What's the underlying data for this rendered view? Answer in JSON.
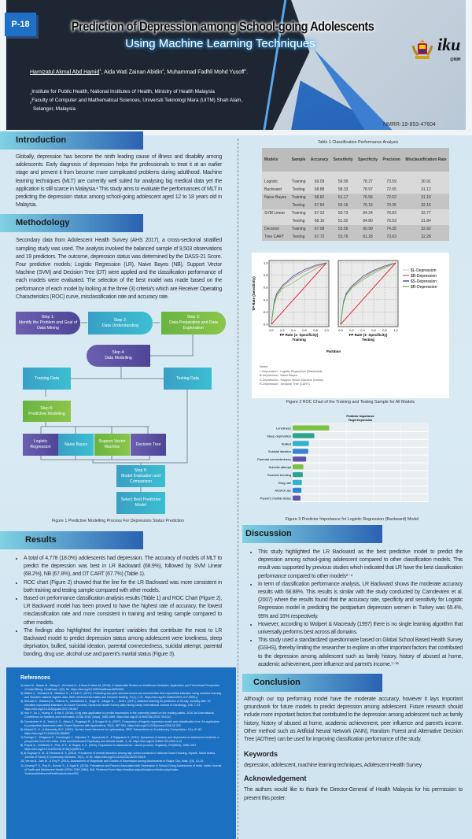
{
  "header": {
    "badge": "P-18",
    "title_line1": "Prediction of Depression among School-going Adolescents",
    "title_line2": "Using Machine Learning Techniques",
    "authors": [
      {
        "name": "Hamizatul Akmal Abd Hamid",
        "sup": "1"
      },
      {
        "name": "Aida Wati Zainan Abidin",
        "sup": "2"
      },
      {
        "name": "Muhammad Fadhli Mohd Yusoff",
        "sup": "1"
      }
    ],
    "affiliations": [
      "Institute for Public Health, National Institutes of Health, Ministry of Health Malaysia",
      "Faculty of Computer and Mathematical Sciences, Universiti Teknologi Mara (UiTM) Shah Alam,",
      "Selangor, Malaysia"
    ],
    "nmrr": "NMRR-19-853-47604",
    "logo_text": "iku",
    "logo_sub": "@NIH"
  },
  "introduction": {
    "heading": "Introduction",
    "text": "Globally, depression has become the ninth leading cause of illness and disability among adolescents. Early diagnosis of depression helps the professionals to treat it at an earlier stage and prevent it from become more complicated problems during adulthood. Machine learning techniques (MLT) are currently well suited for analysing big medical data yet the application is still scarce in Malaysia.¹ This study aims to evaluate the performances of MLT in predicting the depression status among school-going adolescent aged 12 to 18 years old in Malaysia."
  },
  "methodology": {
    "heading": "Methodology",
    "text": "Secondary data from Adolescent Health Survey (AHS 2017), a cross-sectional stratified sampling study was used. The analysis involved the balanced sample of 9,503 observations and 19 predictors. The outcome, depression status was determined by the DASS-21 Score. Four predictive models; Logistic Regression (LR), Naive Bayes (NB), Support Vector Machine (SVM) and Decision Tree (DT) were applied and the classification performance of each models were evaluated. The selection of the best model was made based on the performance of each model by looking at the three (3) criteria's which are Receiver Operating Characteristics (ROC) curve, misclassification rate and accuracy rate.",
    "flow": {
      "step1": "Step 1:\nIdentify the Problem and Goal of Data Mining",
      "step2": "Step 2:\nData Understanding",
      "step3": "Step 3:\nData Preparation and Data Exploration",
      "step4": "Step 4:\nData Modelling",
      "training": "Training Data",
      "testing": "Testing Data",
      "step5": "Step 5:\nPredictive Modelling",
      "lr": "Logistic Regression",
      "nb": "Naive Bayes",
      "svm": "Support Vector Machine",
      "dt": "Decision Tree",
      "step6": "Step 6:\nModel Evaluation and Comparison",
      "select": "Select Best Predictive Model"
    },
    "figure_caption": "Figure 1 Predictive Modelling Process For Depression Status Prediction"
  },
  "results": {
    "heading": "Results",
    "bullets": [
      "A total of 4,778 (18.0%) adolescents had depression. The accuracy of models of MLT to predict the depression was best in LR Backward (68.9%), followed by SVM Linear (68.2%), NB (67.8%), and DT CART (67.7%) (Table 1).",
      "ROC chart (Figure 2) showed that the line for the LR Backward was more consistent in both training and testing sample compared with other models.",
      "Based on performance classification analysis results (Table 1) and ROC Chart (Figure 2), LR Backward model has been proved to have the highest rate of accuracy, the lowest misclassification rate and more consistent in training and testing sample compared to other models.",
      "The findings also highlighted the important variables that contribute the most to LR Backward model to predict depression status among adolescent were loneliness, sleep deprivation, bullied, suicidal ideation, parental connectedness, suicidal attempt, parental bonding, drug use, alcohol use and parent's marital status (Figure 3)."
    ]
  },
  "references": {
    "heading": "References",
    "items": [
      "1) Islam M., Hasan M., Wang X., Germack H., & Noor-E-Alam M. (2018). A Systematic Review on Healthcare Analytics: Application and Theoretical Perspective of Data Mining. Healthcare, 6(2), 54. https://doi.org/10.3390/healthcare6020054",
      "2) Wallert J., Tomasoni M., Madison G., & Held C. (2017). Predicting two-year survival versus non-survival after first myocardial infarction using machine learning and Swedish national register data. BMC Medical Informatics and Decision Making, 17(1), 1-11. https://doi.org/10.1186/s12911-017-0500-y",
      "3) Shouval R., Hadanny A., Shlomo N., Iakobishvili Z., Unger R., Zahger D., ... Amit I. (2017). Machine learning for prediction of 30-day mortality after ST elevation myocardial infarction: An Acute Coronary Syndrome Israeli Survey data mining study. International Journal of Cardiology, 246, 7-13. https://doi.org/10.1016/j.ijcard.2017.05.067",
      "4) Hou Y., Xu J., Huang Y., & Ma X. (2016). A big data application to predict depression in the university based on the reading habits. 2016 3rd International Conference on Systems and Informatics, ICSAI 2016, (Icsai), 1085-1089. https://doi.org/10.1109/ICSAI.2016.7811112",
      "5) Camdeviren H. A., Yazici A. C., Akkus Z., Bugdayci R., & Sungur M. A. (2007). Comparison of logistic regression model and classification tree: An application to postpartum depression data. Expert Systems with Applications, 32(4), 987-994. https://doi.org/10.1016/j.eswa.2006.02.022",
      "6) Wolpert D. H., & Macready W.G. (1997). No free lunch theorems for optimization. IEEE Transactions on Evolutionary Computation, 1(1), 67-82. https://doi.org/10.1109/4235.585893",
      "7) Rodrigo C., Welgama S., Gurusinghe J., Wijeratne T., Jayananda G., & Rajapakse S. (2010). Symptoms of anxiety and depression in adolescent students; a perspective from Sri Lanka. Child and Adolescent Psychiatry and Mental Health, 4, 10. https://doi.org/10.1186/1753-2000-4-10",
      "8) Thapar A., Collishaw S., Pine, D.S., & Thapar, A. K. (2012). Depression in adolescence. Lancet (London, England), 379(9820), 1056-1067. https://doi.org/10.1016/S0140-6736(11)60871-4",
      "9) Al-Sughayr A. M., & Ferwana M. S. (2012). Prevalence of mental disorders among high school students in National Guard Housing, Riyadh, Saudi Arabia. Journal of Family & Community Medicine, 19(1), 47-51. https://doi.org/10.4103/2230-8229.94015",
      "10) Verma N., Jain M., & Roy P. (2014). Assessment of Magnitude and Grades of Depression among Adolescents in Raipur City, India, 2(5), 10-13.",
      "11) Umang P. S., Roy N., Kumari S., & Jugal K. (2016). Prevalence and Factors Associated with Depression in School Going Adolescents of India. Indian Journal of Youth and Adolescent Health (ISSN: 2349-2880), 3(4). Retrieved from https://medical.adrpublications.in/index.php/Indian-YouthandAdolescentHealth/article/view/920"
    ]
  },
  "table": {
    "caption": "Table 1 Classification Performance Analysis",
    "headers": [
      "Models",
      "Sample",
      "Accuracy",
      "Sensitivity",
      "Specificity",
      "Precision",
      "Misclassification Rate"
    ],
    "rows": [
      [
        "Logistic",
        "Training",
        "69.09",
        "59.99",
        "78.27",
        "73.59",
        "30.91"
      ],
      [
        "Backward",
        "Testing",
        "68.88",
        "58.33",
        "78.97",
        "72.65",
        "31.12"
      ],
      [
        "Naive Bayes",
        "Training",
        "68.82",
        "61.17",
        "76.56",
        "72.52",
        "31.18"
      ],
      [
        "",
        "Testing",
        "67.84",
        "59.16",
        "76.15",
        "70.35",
        "32.16"
      ],
      [
        "SVM Linear",
        "Training",
        "67.23",
        "50.73",
        "84.24",
        "76.83",
        "32.77"
      ],
      [
        "",
        "Testing",
        "68.16",
        "51.02",
        "84.80",
        "76.53",
        "31.84"
      ],
      [
        "Decision",
        "Training",
        "67.08",
        "53.56",
        "80.99",
        "74.35",
        "32.92"
      ],
      [
        "Tree CART",
        "Testing",
        "67.72",
        "53.76",
        "81.28",
        "73.63",
        "32.28"
      ]
    ]
  },
  "figure2": {
    "notes_title": "Notes:",
    "notes": [
      "L-Depression - Logistic Regression (Backward)",
      "B-Depression - Naive Bayes",
      "S-Depression - Support Vector Machine (Linear)",
      "R-Depression - Decision Tree (CART)"
    ],
    "caption": "Figure 2 ROC Chart of the Training and Testing Sample for All Models"
  },
  "figure3": {
    "caption": "Figure 3 Predictor Importance for Logistic Regression (Backward) Model"
  },
  "chart_data": [
    {
      "type": "line",
      "ylabel": "TP Rate (Sensitivity)",
      "xlabel": "FP Rate (1- Specificity)",
      "facet_label": "Partition",
      "panels": [
        "Training",
        "Testing"
      ],
      "xlim": [
        0,
        1
      ],
      "ylim": [
        0,
        1
      ],
      "xticks": [
        "0.0",
        "0.2",
        "0.4",
        "0.6",
        "0.8",
        "1.0"
      ],
      "yticks": [
        "0.0",
        "0.2",
        "0.4",
        "0.6",
        "0.8",
        "1.0"
      ],
      "grid": true,
      "legend_position": "right",
      "x": [
        0,
        0.05,
        0.1,
        0.2,
        0.4,
        0.6,
        0.8,
        1
      ],
      "series": [
        {
          "name": "$L-Depression",
          "color": "#c9dbe9",
          "values": {
            "Training": [
              0,
              0.36,
              0.5,
              0.63,
              0.78,
              0.88,
              0.95,
              1
            ],
            "Testing": [
              0,
              0.35,
              0.49,
              0.62,
              0.77,
              0.87,
              0.94,
              1
            ]
          }
        },
        {
          "name": "$B-Depression",
          "color": "#d47a7a",
          "values": {
            "Training": [
              0,
              0.34,
              0.48,
              0.61,
              0.76,
              0.86,
              0.94,
              1
            ],
            "Testing": [
              0,
              0.34,
              0.48,
              0.6,
              0.75,
              0.86,
              0.93,
              1
            ]
          }
        },
        {
          "name": "$S-Depression",
          "color": "#3a5f95",
          "values": {
            "Training": [
              0,
              0.37,
              0.51,
              0.63,
              0.79,
              0.89,
              0.96,
              1
            ],
            "Testing": [
              0,
              0.36,
              0.5,
              0.62,
              0.78,
              0.88,
              0.95,
              1
            ]
          }
        },
        {
          "name": "$R-Depression",
          "color": "#6cc35a",
          "values": {
            "Training": [
              0,
              0.32,
              0.46,
              0.58,
              0.68,
              0.8,
              0.9,
              1
            ],
            "Testing": [
              0,
              0.33,
              0.47,
              0.59,
              0.72,
              0.83,
              0.92,
              1
            ]
          }
        },
        {
          "color": "#e8242a",
          "values": {
            "Training": [
              0,
              0.05,
              0.1,
              0.2,
              0.4,
              0.6,
              0.8,
              1
            ],
            "Testing": [
              0,
              0.05,
              0.1,
              0.2,
              0.4,
              0.6,
              0.8,
              1
            ]
          }
        }
      ]
    },
    {
      "type": "bar",
      "orientation": "horizontal",
      "title": "Predictor Importance",
      "subtitle": "Target Depression",
      "categories": [
        "Loneliness",
        "Sleep deprivation",
        "Bullied",
        "Suicidal ideation",
        "Parental connectedness",
        "Suicidal attempt",
        "Parental bonding",
        "Drug use",
        "Alcohol use",
        "Parent's marital status"
      ],
      "values": [
        0.27,
        0.16,
        0.12,
        0.115,
        0.1,
        0.08,
        0.075,
        0.068,
        0.065,
        0.058
      ],
      "colors": [
        "#7cc242",
        "#2aa48f",
        "#34b3cf",
        "#3584d0",
        "#5f52a8",
        "#7cc242",
        "#2aa48f",
        "#34b3cf",
        "#3584d0",
        "#5f52a8"
      ],
      "xlim": [
        0,
        1
      ],
      "xticks": [
        "0",
        "0.2",
        "0.4",
        "0.6",
        "0.8",
        "1.0"
      ],
      "grid": true
    }
  ],
  "discussion": {
    "heading": "Discussion",
    "bullets": [
      "This study highlighted the LR Backward as the best predictive model to predict the depression among school-going adolescent compared to other classification models. This result was supported by previous studies which indicated that LR have the best classification performance compared to other models²⁻⁴",
      "In term of classification performance analysis, LR Backward shows the moderate accuracy results with 68.88%. This results is similar with the study conducted by Camdeviren et al. (2007) where the results found that the accuracy rate, specificity and sensitivity for Logistic Regression model in predicting the postpartum depression women in Turkey was 65.4%, 95% and 16% respectively.",
      "However, according to Wolpert & Macready (1997) there is no single learning algorithm that universally performs best across all domains.",
      "This study used a standardized questionnaire based on Global School Based Health Survey (GSHS), thereby limiting the researcher to explore on other important factors that contributed to the depression among adolescent such as family history, history of abused at home, academic achievement, peer influence and parent's income.⁷⁻¹¹"
    ]
  },
  "conclusion": {
    "heading": "Conclusion",
    "text": "Although our top performing model have the moderate accuracy, however it lays important groundwork for future models to predict depression among adolescent. Future research should include more important factors that contributed to the depression among adolescent such as family history, history of abused at home, academic achievement, peer influence and parent's income. Other method such as Artificial Neural Network (ANN), Random Forest and Alternative Decision Tree (ADTree) can be used for improving classification performance of the study."
  },
  "keywords": {
    "heading": "Keywords",
    "text": "depression, adolescent, machine learning techniques, Adolescent Health Survey"
  },
  "acknowledgement": {
    "heading": "Acknowledgement",
    "text": "The authors would like to thank the Director-General of Health Malaysia for his permission to present  this poster."
  }
}
